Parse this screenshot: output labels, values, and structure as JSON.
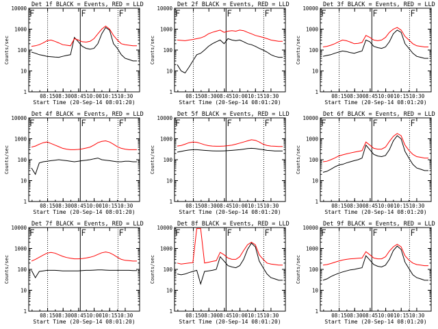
{
  "chart_data": [
    {
      "type": "line",
      "title": "Det 1f BLACK = Events, RED = LLD",
      "ylabel": "Counts/sec",
      "xlabel": "Start Time (20-Sep-14 08:01:20)",
      "xticks": [
        "08:15",
        "08:30",
        "08:45",
        "10:00",
        "10:15",
        "10:30"
      ],
      "yticks": [
        "1",
        "10",
        "100",
        "1000",
        "10000"
      ],
      "yscale": "log",
      "ylim": [
        1,
        10000
      ],
      "series": [
        {
          "color": "#000000",
          "values": [
            80,
            70,
            60,
            55,
            50,
            48,
            46,
            45,
            50,
            55,
            60,
            400,
            250,
            150,
            120,
            110,
            120,
            200,
            600,
            1200,
            900,
            200,
            120,
            60,
            40,
            35,
            30,
            30
          ]
        },
        {
          "color": "#ff0000",
          "values": [
            150,
            160,
            180,
            220,
            280,
            300,
            260,
            220,
            180,
            170,
            160,
            350,
            300,
            250,
            240,
            260,
            350,
            600,
            1000,
            1400,
            1000,
            500,
            300,
            200,
            180,
            170,
            160,
            160
          ]
        }
      ]
    },
    {
      "type": "line",
      "title": "Det 2f BLACK = Events, RED = LLD",
      "ylabel": "Counts/sec",
      "xlabel": "Start Time (20-Sep-14 08:01:20)",
      "xticks": [
        "08:15",
        "08:30",
        "08:45",
        "10:00",
        "10:15",
        "10:30"
      ],
      "yticks": [
        "1",
        "10",
        "100",
        "1000",
        "10000"
      ],
      "yscale": "log",
      "ylim": [
        1,
        10000
      ],
      "series": [
        {
          "color": "#000000",
          "values": [
            20,
            10,
            8,
            15,
            30,
            60,
            70,
            100,
            150,
            200,
            250,
            300,
            200,
            350,
            300,
            280,
            300,
            250,
            200,
            180,
            150,
            120,
            100,
            80,
            60,
            50,
            45,
            45
          ]
        },
        {
          "color": "#ff0000",
          "values": [
            300,
            290,
            280,
            300,
            320,
            350,
            380,
            450,
            600,
            700,
            800,
            900,
            700,
            800,
            850,
            800,
            900,
            850,
            700,
            600,
            500,
            450,
            400,
            350,
            300,
            280,
            260,
            260
          ]
        }
      ]
    },
    {
      "type": "line",
      "title": "Det 3f BLACK = Events, RED = LLD",
      "ylabel": "Counts/sec",
      "xlabel": "Start Time (20-Sep-14 08:01:20)",
      "xticks": [
        "08:15",
        "08:30",
        "08:45",
        "10:00",
        "10:15",
        "10:30"
      ],
      "yticks": [
        "1",
        "10",
        "100",
        "1000",
        "10000"
      ],
      "yscale": "log",
      "ylim": [
        1,
        10000
      ],
      "series": [
        {
          "color": "#000000",
          "values": [
            50,
            55,
            60,
            70,
            80,
            90,
            85,
            75,
            70,
            80,
            90,
            300,
            250,
            150,
            130,
            120,
            140,
            250,
            600,
            900,
            700,
            200,
            120,
            70,
            50,
            45,
            40,
            40
          ]
        },
        {
          "color": "#ff0000",
          "values": [
            140,
            150,
            170,
            200,
            250,
            300,
            280,
            240,
            200,
            210,
            230,
            500,
            400,
            300,
            280,
            300,
            400,
            700,
            1000,
            1200,
            900,
            450,
            300,
            200,
            160,
            150,
            140,
            140
          ]
        }
      ]
    },
    {
      "type": "line",
      "title": "Det 4f BLACK = Events, RED = LLD",
      "ylabel": "Counts/sec",
      "xlabel": "Start Time (20-Sep-14 08:01:20)",
      "xticks": [
        "08:15",
        "08:30",
        "08:45",
        "10:00",
        "10:15",
        "10:30"
      ],
      "yticks": [
        "1",
        "10",
        "100",
        "1000",
        "10000"
      ],
      "yscale": "log",
      "ylim": [
        1,
        10000
      ],
      "series": [
        {
          "color": "#000000",
          "values": [
            40,
            20,
            70,
            80,
            85,
            90,
            95,
            100,
            95,
            90,
            85,
            80,
            85,
            90,
            95,
            100,
            110,
            120,
            100,
            95,
            90,
            85,
            80,
            80,
            85,
            85,
            80,
            80
          ]
        },
        {
          "color": "#ff0000",
          "values": [
            400,
            450,
            550,
            650,
            700,
            600,
            500,
            420,
            350,
            320,
            300,
            300,
            310,
            330,
            360,
            400,
            500,
            650,
            750,
            800,
            700,
            550,
            420,
            350,
            320,
            300,
            300,
            300
          ]
        }
      ]
    },
    {
      "type": "line",
      "title": "Det 5f BLACK = Events, RED = LLD",
      "ylabel": "Counts/sec",
      "xlabel": "Start Time (20-Sep-14 08:01:20)",
      "xticks": [
        "08:15",
        "08:30",
        "08:45",
        "10:00",
        "10:15",
        "10:30"
      ],
      "yticks": [
        "1",
        "10",
        "100",
        "1000",
        "10000"
      ],
      "yscale": "log",
      "ylim": [
        1,
        10000
      ],
      "series": [
        {
          "color": "#000000",
          "values": [
            230,
            250,
            270,
            290,
            300,
            300,
            290,
            280,
            270,
            265,
            260,
            260,
            265,
            270,
            280,
            290,
            300,
            320,
            340,
            350,
            340,
            320,
            300,
            280,
            270,
            260,
            260,
            260
          ]
        },
        {
          "color": "#ff0000",
          "values": [
            450,
            480,
            550,
            650,
            700,
            680,
            600,
            520,
            470,
            450,
            440,
            440,
            450,
            470,
            500,
            550,
            620,
            700,
            800,
            900,
            850,
            700,
            550,
            480,
            450,
            440,
            430,
            430
          ]
        }
      ]
    },
    {
      "type": "line",
      "title": "Det 6f BLACK = Events, RED = LLD",
      "ylabel": "Counts/sec",
      "xlabel": "Start Time (20-Sep-14 08:01:20)",
      "xticks": [
        "08:15",
        "08:30",
        "08:45",
        "10:00",
        "10:15",
        "10:30"
      ],
      "yticks": [
        "1",
        "10",
        "100",
        "1000",
        "10000"
      ],
      "yscale": "log",
      "ylim": [
        1,
        10000
      ],
      "series": [
        {
          "color": "#000000",
          "values": [
            25,
            28,
            35,
            45,
            55,
            60,
            70,
            80,
            90,
            100,
            120,
            500,
            300,
            180,
            150,
            140,
            160,
            300,
            800,
            1400,
            1000,
            250,
            120,
            60,
            40,
            35,
            30,
            30
          ]
        },
        {
          "color": "#ff0000",
          "values": [
            80,
            85,
            100,
            120,
            150,
            170,
            190,
            210,
            230,
            250,
            270,
            700,
            500,
            350,
            320,
            320,
            400,
            750,
            1300,
            1800,
            1400,
            500,
            280,
            180,
            140,
            130,
            120,
            120
          ]
        }
      ]
    },
    {
      "type": "line",
      "title": "Det 7f BLACK = Events, RED = LLD",
      "ylabel": "Counts/sec",
      "xlabel": "Start Time (20-Sep-14 08:01:20)",
      "xticks": [
        "08:15",
        "08:30",
        "08:45",
        "10:00",
        "10:15",
        "10:30"
      ],
      "yticks": [
        "1",
        "10",
        "100",
        "1000",
        "10000"
      ],
      "yscale": "log",
      "ylim": [
        1,
        10000
      ],
      "series": [
        {
          "color": "#000000",
          "values": [
            90,
            40,
            80,
            85,
            90,
            90,
            90,
            88,
            85,
            85,
            85,
            85,
            85,
            88,
            90,
            90,
            92,
            95,
            95,
            92,
            90,
            90,
            90,
            90,
            90,
            90,
            88,
            88
          ]
        },
        {
          "color": "#ff0000",
          "values": [
            250,
            300,
            380,
            480,
            600,
            650,
            600,
            500,
            420,
            370,
            340,
            320,
            320,
            330,
            350,
            380,
            430,
            520,
            620,
            680,
            620,
            500,
            380,
            300,
            270,
            260,
            250,
            250
          ]
        }
      ]
    },
    {
      "type": "line",
      "title": "Det 8f BLACK = Events, RED = LLD",
      "ylabel": "Counts/sec",
      "xlabel": "Start Time (20-Sep-14 08:01:20)",
      "xticks": [
        "08:15",
        "08:30",
        "08:45",
        "10:00",
        "10:15",
        "10:30"
      ],
      "yticks": [
        "1",
        "10",
        "100",
        "1000",
        "10000"
      ],
      "yscale": "log",
      "ylim": [
        1,
        10000
      ],
      "series": [
        {
          "color": "#000000",
          "values": [
            60,
            55,
            60,
            70,
            80,
            90,
            20,
            80,
            85,
            90,
            100,
            400,
            250,
            150,
            130,
            120,
            150,
            300,
            900,
            1800,
            1200,
            250,
            120,
            60,
            40,
            35,
            30,
            30
          ]
        },
        {
          "color": "#ff0000",
          "values": [
            200,
            180,
            190,
            200,
            210,
            9000,
            9000,
            200,
            220,
            240,
            260,
            650,
            500,
            350,
            300,
            300,
            400,
            800,
            1500,
            2000,
            1500,
            500,
            300,
            200,
            180,
            170,
            160,
            160
          ]
        }
      ]
    },
    {
      "type": "line",
      "title": "Det 9f BLACK = Events, RED = LLD",
      "ylabel": "Counts/sec",
      "xlabel": "Start Time (20-Sep-14 08:01:20)",
      "xticks": [
        "08:15",
        "08:30",
        "08:45",
        "10:00",
        "10:15",
        "10:30"
      ],
      "yticks": [
        "1",
        "10",
        "100",
        "1000",
        "10000"
      ],
      "yscale": "log",
      "ylim": [
        1,
        10000
      ],
      "series": [
        {
          "color": "#000000",
          "values": [
            30,
            35,
            45,
            55,
            65,
            75,
            85,
            95,
            100,
            110,
            120,
            450,
            280,
            170,
            140,
            130,
            160,
            300,
            800,
            1300,
            900,
            220,
            110,
            55,
            40,
            35,
            30,
            30
          ]
        },
        {
          "color": "#ff0000",
          "values": [
            160,
            170,
            190,
            220,
            250,
            280,
            300,
            320,
            330,
            340,
            350,
            700,
            500,
            350,
            320,
            320,
            400,
            750,
            1200,
            1600,
            1200,
            450,
            280,
            200,
            170,
            160,
            150,
            150
          ]
        }
      ]
    }
  ]
}
